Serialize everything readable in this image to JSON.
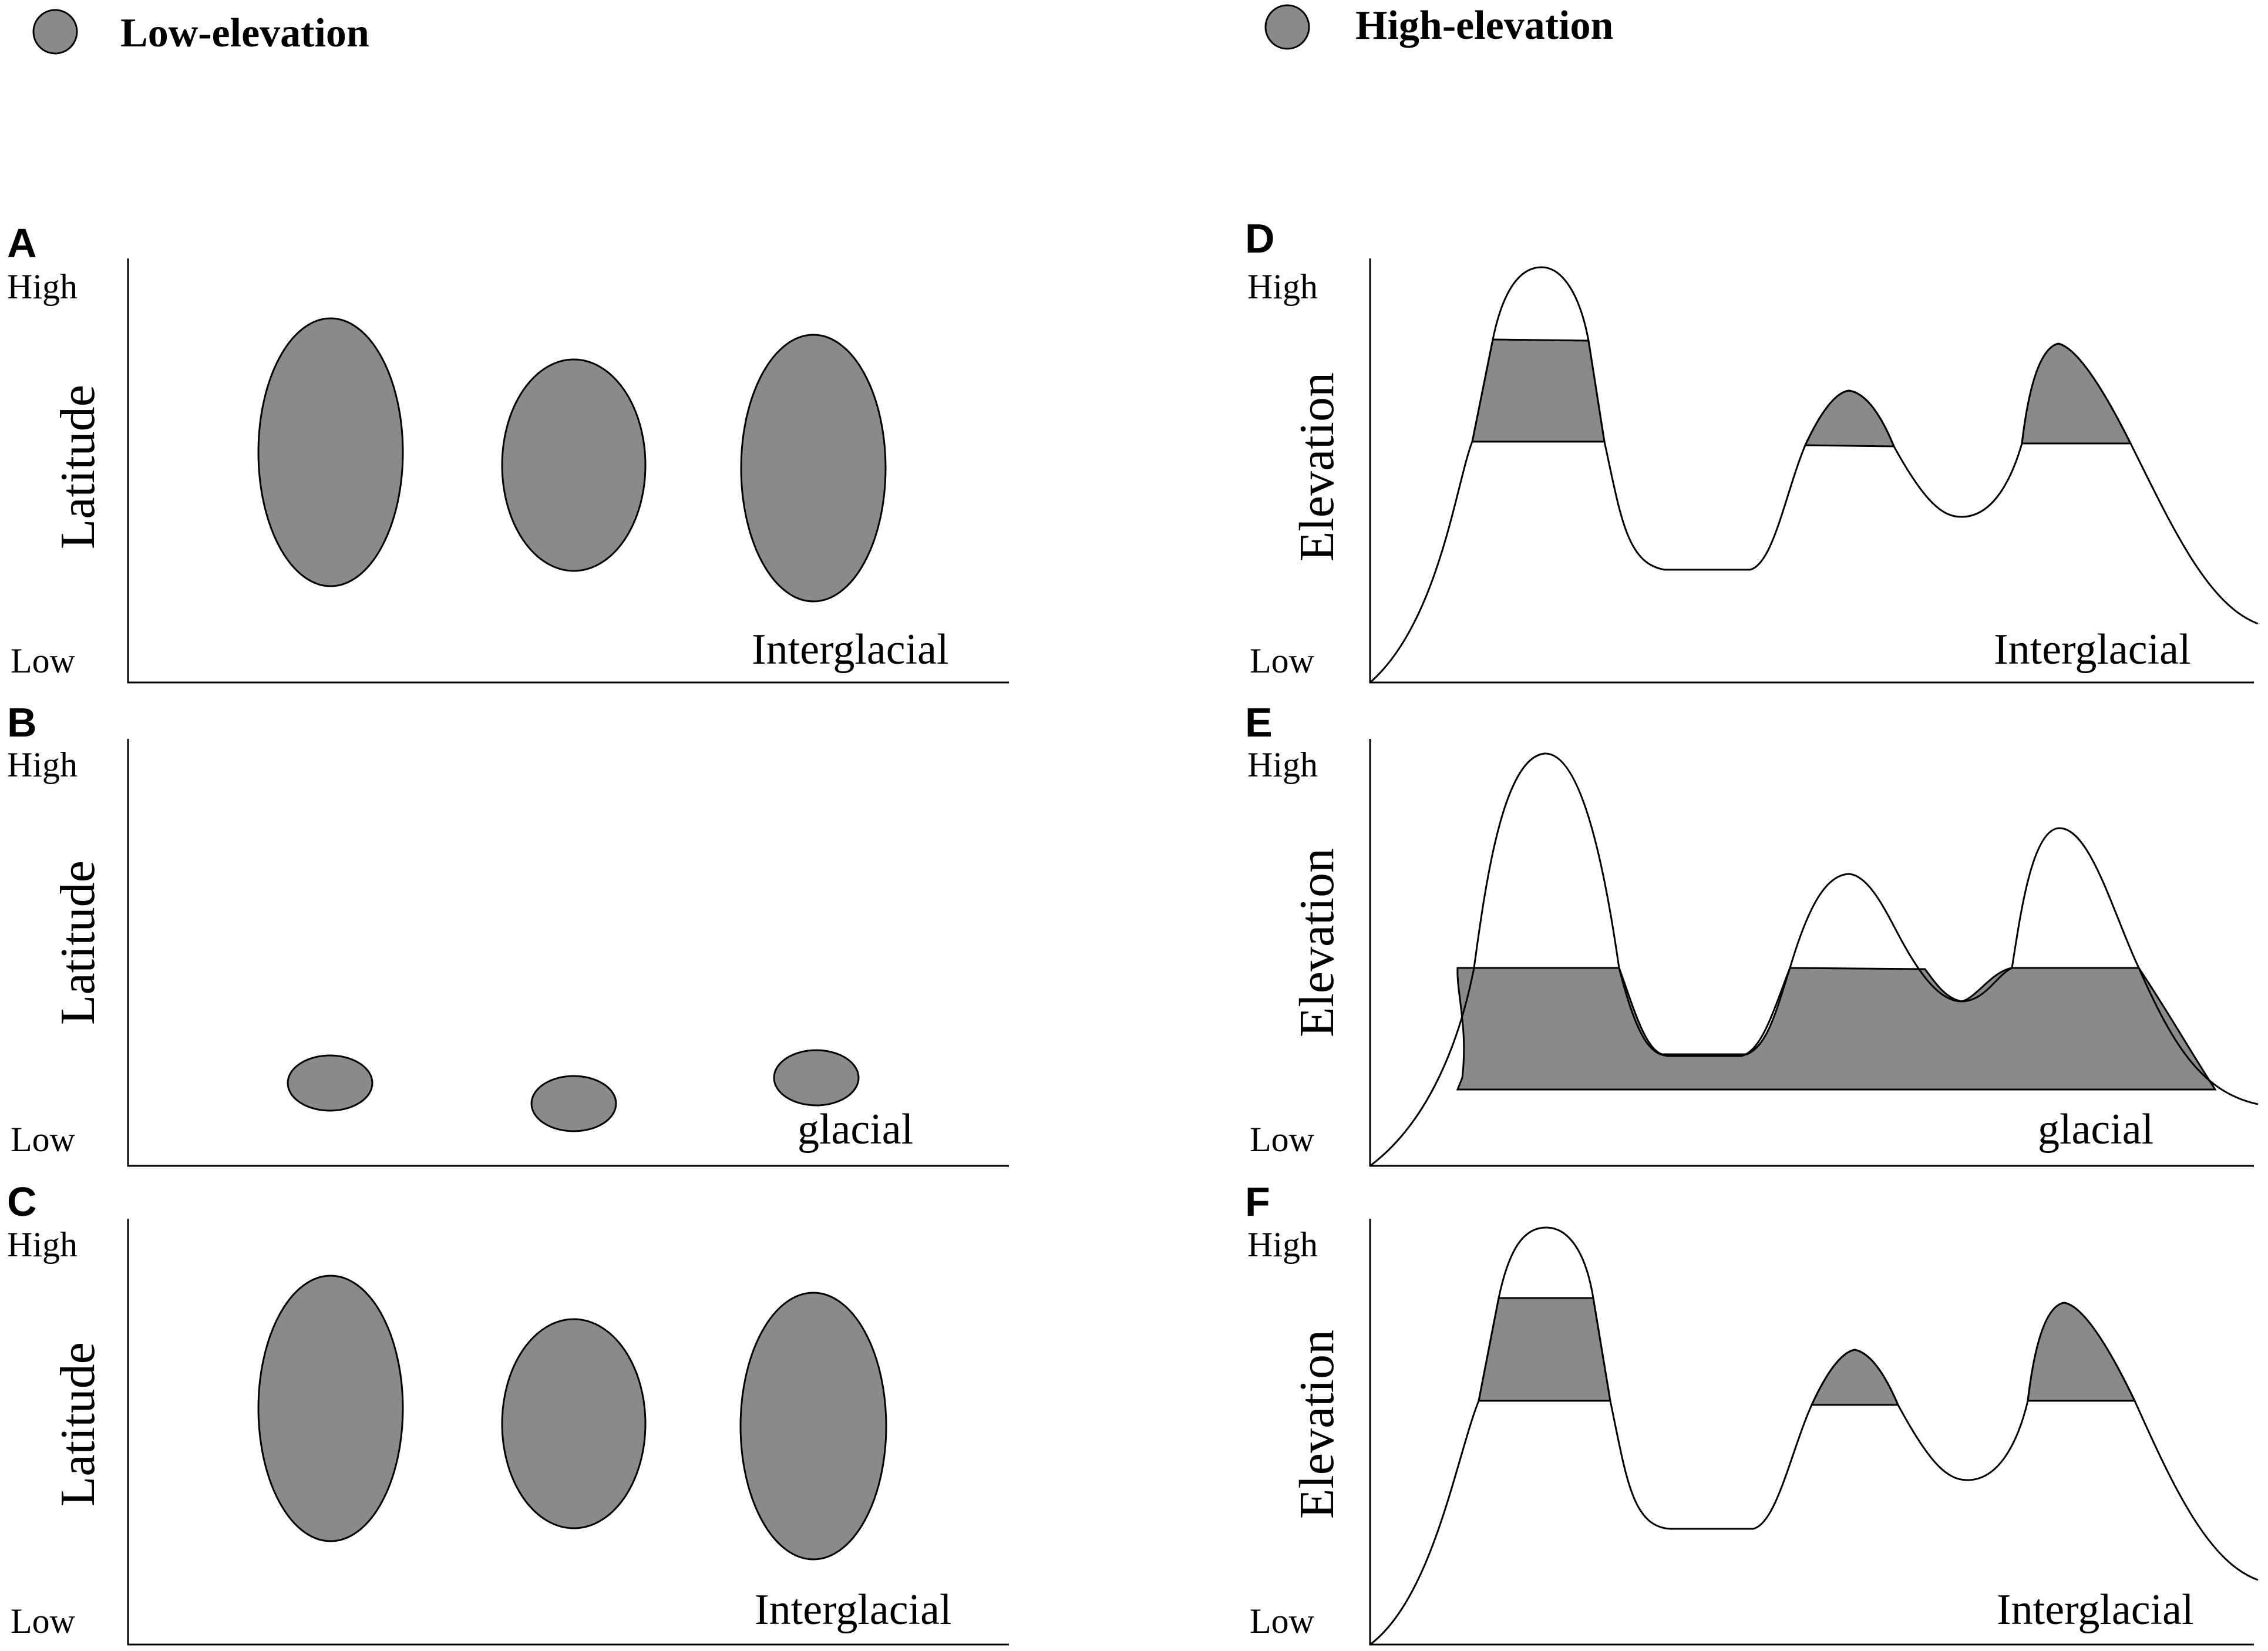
{
  "legend": {
    "low": {
      "label": "Low-elevation",
      "color": "#8a8a8a"
    },
    "high": {
      "label": "High-elevation",
      "color": "#8a8a8a"
    }
  },
  "colors": {
    "fill": "#8a8a8a",
    "stroke": "#000000",
    "background": "#ffffff"
  },
  "panels": {
    "A": {
      "letter": "A",
      "axis_label": "Latitude",
      "high": "High",
      "low": "Low",
      "period": "Interglacial"
    },
    "B": {
      "letter": "B",
      "axis_label": "Latitude",
      "high": "High",
      "low": "Low",
      "period": "glacial"
    },
    "C": {
      "letter": "C",
      "axis_label": "Latitude",
      "high": "High",
      "low": "Low",
      "period": "Interglacial"
    },
    "D": {
      "letter": "D",
      "axis_label": "Elevation",
      "high": "High",
      "low": "Low",
      "period": "Interglacial"
    },
    "E": {
      "letter": "E",
      "axis_label": "Elevation",
      "high": "High",
      "low": "Low",
      "period": "glacial"
    },
    "F": {
      "letter": "F",
      "axis_label": "Elevation",
      "high": "High",
      "low": "Low",
      "period": "Interglacial"
    }
  }
}
